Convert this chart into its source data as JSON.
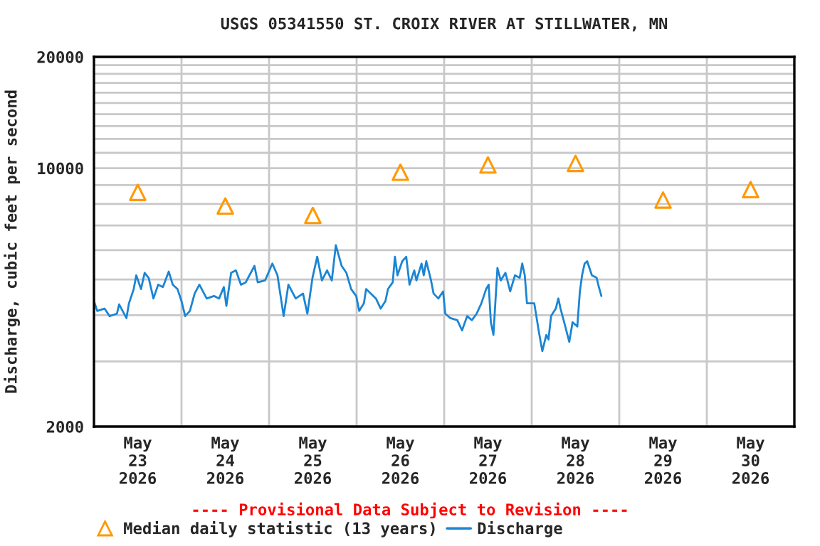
{
  "chart_data": {
    "type": "line",
    "title": "USGS 05341550 ST. CROIX RIVER AT STILLWATER, MN",
    "ylabel": "Discharge, cubic feet per second",
    "annotations": [
      "---- Provisional Data Subject to Revision ----"
    ],
    "xlim": [
      "2026-05-23T00:00",
      "2026-05-31T00:00"
    ],
    "xticks": [
      {
        "value": "2026-05-23T00:00",
        "label": null
      },
      {
        "value": "2026-05-23T12:00",
        "label": "May\n23\n2026"
      },
      {
        "value": "2026-05-24T00:00",
        "label": null
      },
      {
        "value": "2026-05-24T12:00",
        "label": "May\n24\n2026"
      },
      {
        "value": "2026-05-25T00:00",
        "label": null
      },
      {
        "value": "2026-05-25T12:00",
        "label": "May\n25\n2026"
      },
      {
        "value": "2026-05-26T00:00",
        "label": null
      },
      {
        "value": "2026-05-26T12:00",
        "label": "May\n26\n2026"
      },
      {
        "value": "2026-05-27T00:00",
        "label": null
      },
      {
        "value": "2026-05-27T12:00",
        "label": "May\n27\n2026"
      },
      {
        "value": "2026-05-28T00:00",
        "label": null
      },
      {
        "value": "2026-05-28T12:00",
        "label": "May\n28\n2026"
      },
      {
        "value": "2026-05-29T00:00",
        "label": null
      },
      {
        "value": "2026-05-29T12:00",
        "label": "May\n29\n2026"
      },
      {
        "value": "2026-05-30T00:00",
        "label": null
      },
      {
        "value": "2026-05-30T12:00",
        "label": "May\n30\n2026"
      },
      {
        "value": "2026-05-31T00:00",
        "label": null
      }
    ],
    "log": "y",
    "ylim": [
      2000,
      20000
    ],
    "yticks": [
      2000,
      {
        "value": 3000,
        "label": null
      },
      {
        "value": 4000,
        "label": null
      },
      {
        "value": 5000,
        "label": null
      },
      {
        "value": 6000,
        "label": null
      },
      {
        "value": 7000,
        "label": null
      },
      {
        "value": 8000,
        "label": null
      },
      {
        "value": 9000,
        "label": null
      },
      10000,
      {
        "value": 11000,
        "label": null
      },
      {
        "value": 12000,
        "label": null
      },
      {
        "value": 13000,
        "label": null
      },
      {
        "value": 14000,
        "label": null
      },
      {
        "value": 15000,
        "label": null
      },
      {
        "value": 16000,
        "label": null
      },
      {
        "value": 17000,
        "label": null
      },
      {
        "value": 18000,
        "label": null
      },
      {
        "value": 19000,
        "label": null
      },
      20000
    ],
    "grid": true,
    "legend": "bottom",
    "series": [
      {
        "name": "Median daily statistic (13 years)",
        "type": "scatter",
        "marker": "triangle",
        "color": "#ff9900",
        "x": [
          "2026-05-23T12:00",
          "2026-05-24T12:00",
          "2026-05-25T12:00",
          "2026-05-26T12:00",
          "2026-05-27T12:00",
          "2026-05-28T12:00",
          "2026-05-29T12:00",
          "2026-05-30T12:00"
        ],
        "values": [
          8600,
          7900,
          7450,
          9750,
          10200,
          10300,
          8200,
          8750
        ]
      },
      {
        "name": "Discharge",
        "color": "#1a85d4",
        "marker": "none",
        "line_style": "solid",
        "x": [
          "2026-05-23T00:00",
          "2026-05-23T00:54",
          "2026-05-23T02:54",
          "2026-05-23T04:18",
          "2026-05-23T06:18",
          "2026-05-23T06:54",
          "2026-05-23T08:54",
          "2026-05-23T09:36",
          "2026-05-23T10:54",
          "2026-05-23T11:36",
          "2026-05-23T12:54",
          "2026-05-23T13:54",
          "2026-05-23T15:00",
          "2026-05-23T16:18",
          "2026-05-23T17:36",
          "2026-05-23T18:54",
          "2026-05-23T20:30",
          "2026-05-23T21:36",
          "2026-05-23T22:54",
          "2026-05-24T00:00",
          "2026-05-24T01:00",
          "2026-05-24T02:18",
          "2026-05-24T03:36",
          "2026-05-24T04:54",
          "2026-05-24T06:54",
          "2026-05-24T08:54",
          "2026-05-24T10:18",
          "2026-05-24T11:36",
          "2026-05-24T12:18",
          "2026-05-24T13:36",
          "2026-05-24T14:54",
          "2026-05-24T16:18",
          "2026-05-24T17:36",
          "2026-05-24T20:00",
          "2026-05-24T20:54",
          "2026-05-24T22:54",
          "2026-05-25T00:54",
          "2026-05-25T02:18",
          "2026-05-25T04:00",
          "2026-05-25T05:18",
          "2026-05-25T07:18",
          "2026-05-25T09:18",
          "2026-05-25T10:30",
          "2026-05-25T11:54",
          "2026-05-25T13:12",
          "2026-05-25T14:30",
          "2026-05-25T15:54",
          "2026-05-25T17:12",
          "2026-05-25T18:18",
          "2026-05-25T19:54",
          "2026-05-25T21:12",
          "2026-05-25T22:30",
          "2026-05-25T23:54",
          "2026-05-26T00:42",
          "2026-05-26T02:00",
          "2026-05-26T02:36",
          "2026-05-26T03:54",
          "2026-05-26T05:18",
          "2026-05-26T06:36",
          "2026-05-26T07:54",
          "2026-05-26T08:36",
          "2026-05-26T09:54",
          "2026-05-26T10:30",
          "2026-05-26T11:12",
          "2026-05-26T12:30",
          "2026-05-26T13:36",
          "2026-05-26T14:30",
          "2026-05-26T15:48",
          "2026-05-26T16:24",
          "2026-05-26T17:48",
          "2026-05-26T18:24",
          "2026-05-26T19:06",
          "2026-05-26T20:24",
          "2026-05-26T21:06",
          "2026-05-26T22:24",
          "2026-05-26T23:42",
          "2026-05-27T00:18",
          "2026-05-27T01:42",
          "2026-05-27T03:36",
          "2026-05-27T04:54",
          "2026-05-27T06:18",
          "2026-05-27T07:36",
          "2026-05-27T08:54",
          "2026-05-27T10:12",
          "2026-05-27T11:30",
          "2026-05-27T12:12",
          "2026-05-27T12:48",
          "2026-05-27T13:30",
          "2026-05-27T14:36",
          "2026-05-27T15:30",
          "2026-05-27T16:48",
          "2026-05-27T18:06",
          "2026-05-27T19:24",
          "2026-05-27T20:42",
          "2026-05-27T21:24",
          "2026-05-27T22:06",
          "2026-05-27T22:42",
          "2026-05-28T00:42",
          "2026-05-28T02:00",
          "2026-05-28T02:54",
          "2026-05-28T04:00",
          "2026-05-28T04:36",
          "2026-05-28T05:18",
          "2026-05-28T06:36",
          "2026-05-28T07:18",
          "2026-05-28T07:54",
          "2026-05-28T09:12",
          "2026-05-28T10:18",
          "2026-05-28T11:12",
          "2026-05-28T12:30",
          "2026-05-28T13:12",
          "2026-05-28T13:48",
          "2026-05-28T14:30",
          "2026-05-28T15:12",
          "2026-05-28T16:30",
          "2026-05-28T17:48",
          "2026-05-28T18:24",
          "2026-05-28T19:06"
        ],
        "values": [
          4370,
          4110,
          4170,
          3980,
          4040,
          4280,
          3930,
          4310,
          4710,
          5130,
          4710,
          5210,
          5050,
          4440,
          4840,
          4770,
          5250,
          4840,
          4710,
          4370,
          3980,
          4110,
          4580,
          4840,
          4440,
          4510,
          4440,
          4770,
          4240,
          5210,
          5290,
          4840,
          4910,
          5440,
          4910,
          4970,
          5520,
          5130,
          3980,
          4840,
          4440,
          4580,
          4040,
          5050,
          5760,
          4970,
          5290,
          4970,
          6190,
          5440,
          5210,
          4710,
          4510,
          4110,
          4310,
          4710,
          4580,
          4440,
          4170,
          4370,
          4710,
          4910,
          5760,
          5130,
          5600,
          5760,
          4840,
          5290,
          4970,
          5520,
          5130,
          5600,
          4970,
          4580,
          4440,
          4640,
          4040,
          3930,
          3880,
          3640,
          3980,
          3880,
          4040,
          4310,
          4710,
          4840,
          3830,
          3540,
          5370,
          4970,
          5210,
          4640,
          5130,
          5050,
          5520,
          5130,
          4310,
          4310,
          3590,
          3200,
          3540,
          3440,
          3980,
          4170,
          4440,
          4170,
          3730,
          3390,
          3830,
          3730,
          4640,
          5130,
          5520,
          5600,
          5130,
          5050,
          4770,
          4510
        ]
      }
    ]
  }
}
